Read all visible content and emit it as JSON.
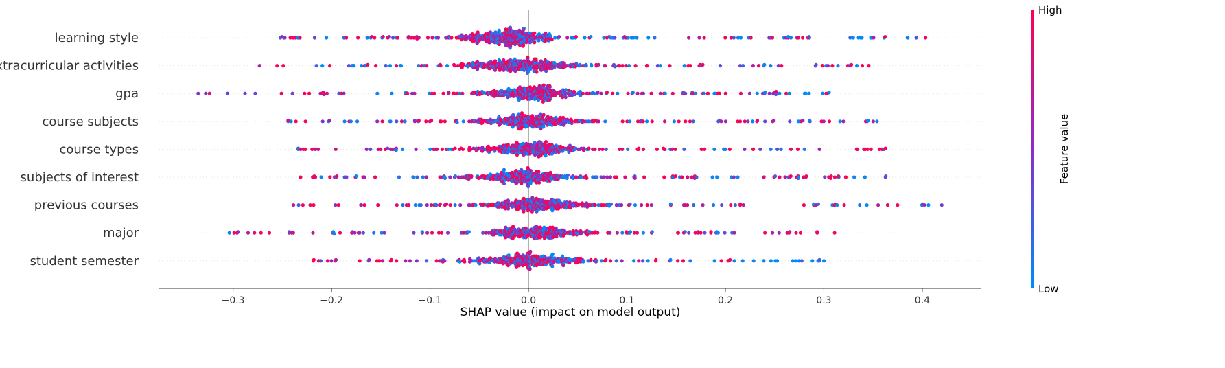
{
  "chart_data": {
    "type": "scatter",
    "subtype": "shap-beeswarm",
    "title": "",
    "xlabel": "SHAP value (impact on model output)",
    "xlim": [
      -0.375,
      0.46
    ],
    "xticks": [
      -0.3,
      -0.2,
      -0.1,
      0.0,
      0.1,
      0.2,
      0.3,
      0.4
    ],
    "xtick_labels": [
      "−0.3",
      "−0.2",
      "−0.1",
      "0.0",
      "0.1",
      "0.2",
      "0.3",
      "0.4"
    ],
    "zero_line": true,
    "grid": false,
    "features": [
      {
        "name": "learning style",
        "min": -0.252,
        "max": 0.403,
        "peak": -0.02,
        "sigma": 0.028,
        "n": 520,
        "color_trend": -0.6
      },
      {
        "name": "extracurricular activities",
        "min": -0.273,
        "max": 0.346,
        "peak": -0.01,
        "sigma": 0.028,
        "n": 470,
        "color_trend": 0.1
      },
      {
        "name": "gpa",
        "min": -0.335,
        "max": 0.305,
        "peak": 0.005,
        "sigma": 0.026,
        "n": 460,
        "color_trend": -0.5
      },
      {
        "name": "course subjects",
        "min": -0.244,
        "max": 0.354,
        "peak": 0.0,
        "sigma": 0.027,
        "n": 440,
        "color_trend": 0.0
      },
      {
        "name": "course types",
        "min": -0.234,
        "max": 0.363,
        "peak": 0.0,
        "sigma": 0.026,
        "n": 440,
        "color_trend": 0.3
      },
      {
        "name": "subjects of interest",
        "min": -0.232,
        "max": 0.363,
        "peak": -0.005,
        "sigma": 0.025,
        "n": 440,
        "color_trend": 0.2
      },
      {
        "name": "previous courses",
        "min": -0.239,
        "max": 0.42,
        "peak": 0.005,
        "sigma": 0.026,
        "n": 430,
        "color_trend": -0.2
      },
      {
        "name": "major",
        "min": -0.304,
        "max": 0.311,
        "peak": 0.005,
        "sigma": 0.025,
        "n": 420,
        "color_trend": 0.1
      },
      {
        "name": "student semester",
        "min": -0.218,
        "max": 0.3,
        "peak": 0.0,
        "sigma": 0.027,
        "n": 420,
        "color_trend": -0.8
      }
    ],
    "colorbar": {
      "label": "Feature value",
      "high_label": "High",
      "low_label": "Low",
      "high_color": "#ff0052",
      "mid_color": "#8a2ec8",
      "low_color": "#008bfb"
    }
  }
}
